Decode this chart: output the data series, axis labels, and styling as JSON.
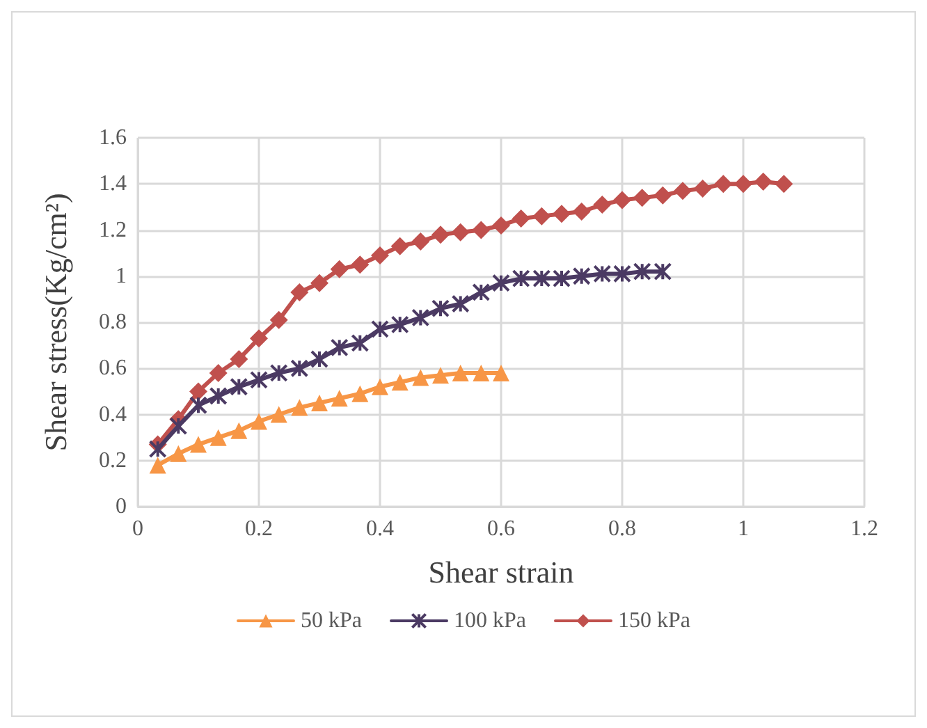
{
  "chart_data": {
    "type": "line",
    "xlabel": "Shear strain",
    "ylabel": "Shear stress(Kg/cm²)",
    "xlim": [
      0,
      1.2
    ],
    "xticks": [
      0,
      0.2,
      0.4,
      0.6,
      0.8,
      1,
      1.2
    ],
    "ylim": [
      0,
      1.6
    ],
    "yticks": [
      0,
      0.2,
      0.4,
      0.6,
      0.8,
      1,
      1.2,
      1.4,
      1.6
    ],
    "grid": true,
    "legend": "bottom",
    "line_style": "solid",
    "series": [
      {
        "name": "50 kPa",
        "color": "#f79646",
        "marker": "triangle",
        "x": [
          0.033,
          0.067,
          0.1,
          0.133,
          0.167,
          0.2,
          0.233,
          0.267,
          0.3,
          0.333,
          0.367,
          0.4,
          0.433,
          0.467,
          0.5,
          0.533,
          0.567,
          0.6
        ],
        "values": [
          0.18,
          0.23,
          0.27,
          0.3,
          0.33,
          0.37,
          0.4,
          0.43,
          0.45,
          0.47,
          0.49,
          0.52,
          0.54,
          0.56,
          0.57,
          0.58,
          0.58,
          0.58
        ]
      },
      {
        "name": "100 kPa",
        "color": "#4b3a63",
        "marker": "cross",
        "x": [
          0.033,
          0.067,
          0.1,
          0.133,
          0.167,
          0.2,
          0.233,
          0.267,
          0.3,
          0.333,
          0.367,
          0.4,
          0.433,
          0.467,
          0.5,
          0.533,
          0.567,
          0.6,
          0.633,
          0.667,
          0.7,
          0.733,
          0.767,
          0.8,
          0.833,
          0.867
        ],
        "values": [
          0.25,
          0.35,
          0.44,
          0.48,
          0.52,
          0.55,
          0.58,
          0.6,
          0.64,
          0.69,
          0.71,
          0.77,
          0.79,
          0.82,
          0.86,
          0.88,
          0.93,
          0.97,
          0.99,
          0.99,
          0.99,
          1,
          1.01,
          1.01,
          1.02,
          1.02
        ]
      },
      {
        "name": "150 kPa",
        "color": "#c0504d",
        "marker": "diamond",
        "x": [
          0.033,
          0.067,
          0.1,
          0.133,
          0.167,
          0.2,
          0.233,
          0.267,
          0.3,
          0.333,
          0.367,
          0.4,
          0.433,
          0.467,
          0.5,
          0.533,
          0.567,
          0.6,
          0.633,
          0.667,
          0.7,
          0.733,
          0.767,
          0.8,
          0.833,
          0.867,
          0.9,
          0.933,
          0.967,
          1,
          1.033,
          1.067
        ],
        "values": [
          0.27,
          0.38,
          0.5,
          0.58,
          0.64,
          0.73,
          0.81,
          0.93,
          0.97,
          1.03,
          1.05,
          1.09,
          1.13,
          1.15,
          1.18,
          1.19,
          1.2,
          1.22,
          1.25,
          1.26,
          1.27,
          1.28,
          1.31,
          1.33,
          1.34,
          1.35,
          1.37,
          1.38,
          1.4,
          1.4,
          1.41,
          1.4
        ]
      }
    ]
  }
}
